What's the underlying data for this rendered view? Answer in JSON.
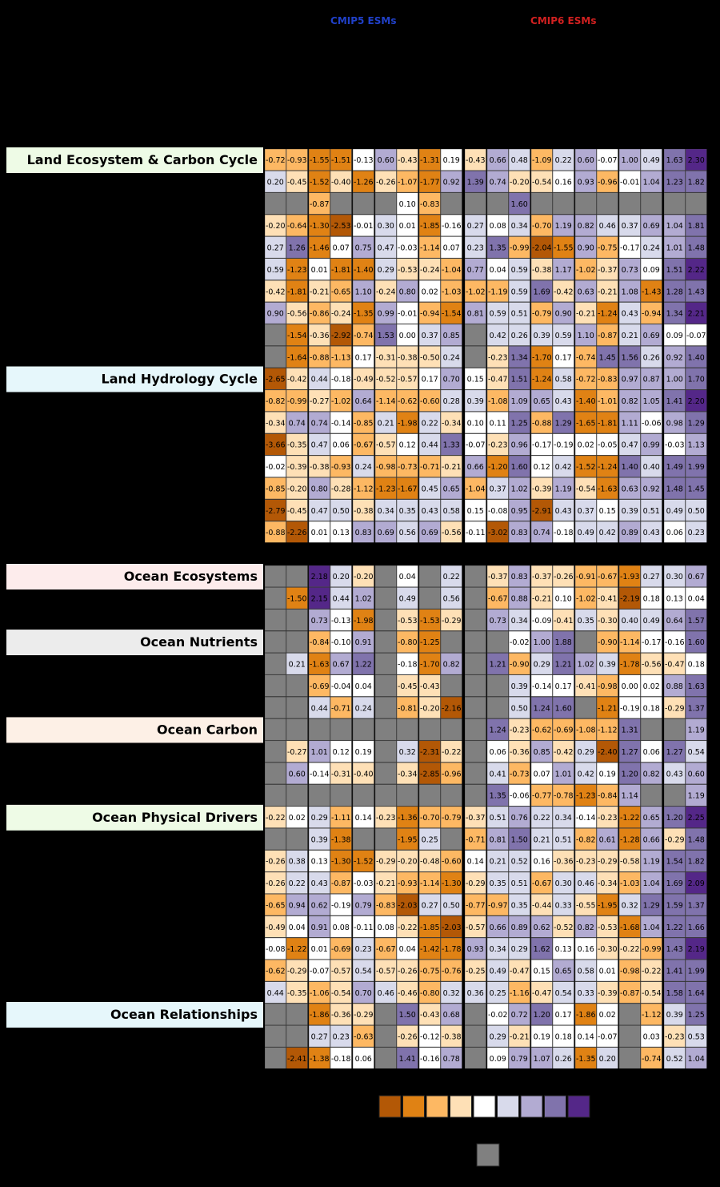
{
  "colors": {
    "cmip5": "#2040c8",
    "cmip6": "#d02020",
    "missing": "#808080",
    "background": "#000000",
    "scale": [
      "#b35806",
      "#e08214",
      "#fdb863",
      "#fee0b6",
      "#ffffff",
      "#d8daeb",
      "#b2abd2",
      "#8073ac",
      "#542788"
    ],
    "section_bg": {
      "Land Ecosystem & Carbon Cycle": "#eefbe6",
      "Land Hydrology Cycle": "#e6f7fb",
      "Ocean Ecosystems": "#fdecec",
      "Ocean Nutrients": "#ececec",
      "Ocean Carbon": "#fdf0e6",
      "Ocean Physical Drivers": "#eefbe6",
      "Ocean Relationships": "#e6f7fb"
    }
  },
  "chart_data": {
    "type": "heatmap",
    "title": "",
    "column_groups": [
      {
        "name": "CMIP5 ESMs",
        "count": 9
      },
      {
        "name": "CMIP6 ESMs",
        "count": 9
      },
      {
        "name": "",
        "count": 2
      }
    ],
    "columns": [
      "",
      "",
      "",
      "",
      "",
      "",
      "",
      "",
      "",
      "",
      "",
      "",
      "",
      "",
      "",
      "",
      "",
      "",
      "",
      ""
    ],
    "sections": [
      {
        "name": "Land Ecosystem & Carbon Cycle",
        "label_row": 0
      },
      {
        "name": "Land Hydrology Cycle",
        "label_row": 10
      },
      {
        "name": "Ocean Ecosystems",
        "label_row": 18
      },
      {
        "name": "Ocean Nutrients",
        "label_row": 21
      },
      {
        "name": "Ocean Carbon",
        "label_row": 25
      },
      {
        "name": "Ocean Physical Drivers",
        "label_row": 29
      },
      {
        "name": "Ocean Relationships",
        "label_row": 38
      }
    ],
    "scale_bins": 9,
    "rows": [
      [
        -0.72,
        -0.93,
        -1.55,
        -1.51,
        -0.13,
        0.6,
        -0.43,
        -1.31,
        0.19,
        -0.43,
        0.66,
        0.48,
        -1.09,
        0.22,
        0.6,
        -0.07,
        1.0,
        0.49,
        1.63,
        2.3
      ],
      [
        0.2,
        -0.45,
        -1.52,
        -0.4,
        -1.26,
        -0.26,
        -1.07,
        -1.77,
        0.92,
        1.39,
        0.74,
        -0.2,
        -0.54,
        0.16,
        0.93,
        -0.96,
        -0.01,
        1.04,
        1.23,
        1.82
      ],
      [
        null,
        null,
        -0.87,
        null,
        null,
        null,
        0.1,
        -0.83,
        null,
        null,
        null,
        1.6,
        null,
        null,
        null,
        null,
        null,
        null,
        null,
        null
      ],
      [
        -0.2,
        -0.64,
        -1.3,
        -2.53,
        -0.01,
        0.3,
        0.01,
        -1.85,
        -0.16,
        0.27,
        0.08,
        0.34,
        -0.7,
        1.19,
        0.82,
        0.46,
        0.37,
        0.69,
        1.04,
        1.81
      ],
      [
        0.27,
        1.26,
        -1.46,
        0.07,
        0.75,
        0.47,
        -0.03,
        -1.14,
        0.07,
        0.23,
        1.35,
        -0.99,
        -2.04,
        -1.55,
        0.9,
        -0.75,
        -0.17,
        0.24,
        1.01,
        1.48
      ],
      [
        0.59,
        -1.23,
        0.01,
        -1.81,
        -1.4,
        0.29,
        -0.53,
        -0.24,
        -1.04,
        0.77,
        0.04,
        0.59,
        -0.38,
        1.17,
        -1.02,
        -0.37,
        0.73,
        0.09,
        1.51,
        2.22
      ],
      [
        -0.42,
        -1.81,
        -0.21,
        -0.65,
        1.1,
        -0.24,
        0.8,
        0.02,
        -1.03,
        -1.02,
        -1.19,
        0.59,
        1.69,
        -0.42,
        0.63,
        -0.21,
        1.08,
        -1.43,
        1.28,
        1.43
      ],
      [
        0.9,
        -0.56,
        -0.86,
        -0.24,
        -1.35,
        0.99,
        -0.01,
        -0.94,
        -1.54,
        0.81,
        0.59,
        0.51,
        -0.79,
        0.9,
        -0.21,
        -1.24,
        0.43,
        -0.94,
        1.34,
        2.21
      ],
      [
        null,
        -1.54,
        -0.36,
        -2.92,
        -0.74,
        1.53,
        -0.0,
        0.37,
        0.85,
        null,
        0.42,
        0.26,
        0.39,
        0.59,
        1.1,
        -0.87,
        0.21,
        0.69,
        0.09,
        -0.07
      ],
      [
        null,
        -1.64,
        -0.88,
        -1.13,
        0.17,
        -0.31,
        -0.38,
        -0.5,
        0.24,
        null,
        -0.23,
        1.34,
        -1.7,
        0.17,
        -0.74,
        1.45,
        1.56,
        0.26,
        0.92,
        1.4
      ],
      [
        -2.65,
        -0.42,
        0.44,
        -0.18,
        -0.49,
        -0.52,
        -0.57,
        0.17,
        0.7,
        0.15,
        -0.47,
        1.51,
        -1.24,
        0.58,
        -0.72,
        -0.83,
        0.97,
        0.87,
        1.0,
        1.7
      ],
      [
        -0.82,
        -0.99,
        -0.27,
        -1.02,
        0.64,
        -1.14,
        -0.62,
        -0.6,
        0.28,
        0.39,
        -1.08,
        1.09,
        0.65,
        0.43,
        -1.4,
        -1.01,
        0.82,
        1.05,
        1.41,
        2.2
      ],
      [
        -0.34,
        0.74,
        0.74,
        -0.14,
        -0.85,
        0.21,
        -1.98,
        0.22,
        -0.34,
        0.1,
        0.11,
        1.25,
        -0.88,
        1.29,
        -1.65,
        -1.81,
        1.11,
        -0.06,
        0.98,
        1.29
      ],
      [
        -3.66,
        -0.35,
        0.47,
        0.06,
        -0.67,
        -0.57,
        0.12,
        0.44,
        1.33,
        -0.07,
        -0.23,
        0.96,
        -0.17,
        -0.19,
        0.02,
        -0.05,
        0.47,
        0.99,
        -0.03,
        1.13
      ],
      [
        -0.02,
        -0.39,
        -0.38,
        -0.93,
        0.24,
        -0.98,
        -0.73,
        -0.71,
        -0.21,
        0.66,
        -1.2,
        1.6,
        0.12,
        0.42,
        -1.52,
        -1.24,
        1.4,
        0.4,
        1.49,
        1.99
      ],
      [
        -0.85,
        -0.2,
        0.8,
        -0.28,
        -1.12,
        -1.23,
        -1.67,
        0.45,
        0.65,
        -1.04,
        0.37,
        1.02,
        -0.39,
        1.19,
        -0.54,
        -1.63,
        0.63,
        0.92,
        1.48,
        1.45
      ],
      [
        -2.79,
        -0.45,
        0.47,
        0.5,
        -0.38,
        0.34,
        0.35,
        0.43,
        0.58,
        0.15,
        -0.08,
        0.95,
        -2.91,
        0.43,
        0.37,
        0.15,
        0.39,
        0.51,
        0.49,
        0.5
      ],
      [
        -0.88,
        -2.26,
        0.01,
        0.13,
        0.83,
        0.69,
        0.56,
        0.69,
        -0.56,
        -0.11,
        -3.02,
        0.83,
        0.74,
        -0.18,
        0.49,
        0.42,
        0.89,
        0.43,
        0.06,
        0.23
      ],
      [
        null,
        null,
        2.18,
        0.2,
        -0.2,
        null,
        0.04,
        null,
        0.22,
        null,
        -0.37,
        0.83,
        -0.37,
        -0.26,
        -0.91,
        -0.67,
        -1.93,
        0.27,
        0.3,
        0.67
      ],
      [
        null,
        -1.5,
        2.15,
        0.44,
        1.02,
        null,
        0.49,
        null,
        0.56,
        null,
        -0.67,
        0.88,
        -0.21,
        0.1,
        -1.02,
        -0.41,
        -2.19,
        0.18,
        0.13,
        0.04
      ],
      [
        null,
        null,
        0.73,
        -0.13,
        -1.98,
        null,
        -0.53,
        -1.53,
        -0.29,
        null,
        0.73,
        0.34,
        -0.09,
        -0.41,
        0.35,
        -0.3,
        0.4,
        0.49,
        0.64,
        1.57
      ],
      [
        null,
        null,
        -0.84,
        -0.1,
        0.91,
        null,
        -0.8,
        -1.25,
        null,
        null,
        null,
        -0.02,
        1.0,
        1.88,
        null,
        -0.9,
        -1.14,
        -0.17,
        -0.16,
        1.6
      ],
      [
        null,
        0.21,
        -1.63,
        0.67,
        1.22,
        null,
        -0.18,
        -1.7,
        0.82,
        null,
        1.21,
        -0.9,
        0.29,
        1.21,
        1.02,
        0.39,
        -1.78,
        -0.56,
        -0.47,
        0.18
      ],
      [
        null,
        null,
        -0.69,
        -0.04,
        0.04,
        null,
        -0.45,
        -0.43,
        null,
        null,
        null,
        0.39,
        -0.14,
        0.17,
        -0.41,
        -0.98,
        0.0,
        0.02,
        0.88,
        1.63
      ],
      [
        null,
        null,
        0.44,
        -0.71,
        0.24,
        null,
        -0.81,
        -0.2,
        -2.16,
        null,
        null,
        0.5,
        1.24,
        1.6,
        null,
        -1.21,
        -0.19,
        0.18,
        -0.29,
        1.37
      ],
      [
        null,
        null,
        null,
        null,
        null,
        null,
        null,
        null,
        null,
        null,
        1.24,
        -0.23,
        -0.62,
        -0.69,
        -1.08,
        -1.12,
        1.31,
        null,
        null,
        1.19
      ],
      [
        null,
        -0.27,
        1.01,
        0.12,
        0.19,
        null,
        0.32,
        -2.31,
        -0.22,
        null,
        0.06,
        -0.36,
        0.85,
        -0.42,
        0.29,
        -2.4,
        1.27,
        0.06,
        1.27,
        0.54
      ],
      [
        null,
        0.6,
        -0.14,
        -0.31,
        -0.4,
        null,
        -0.34,
        -2.85,
        -0.96,
        null,
        0.41,
        -0.73,
        0.07,
        1.01,
        0.42,
        0.19,
        1.2,
        0.82,
        0.43,
        0.6
      ],
      [
        null,
        null,
        null,
        null,
        null,
        null,
        null,
        null,
        null,
        null,
        1.35,
        -0.06,
        -0.77,
        -0.78,
        -1.23,
        -0.84,
        1.14,
        null,
        null,
        1.19
      ],
      [
        -0.22,
        0.02,
        0.29,
        -1.11,
        0.14,
        -0.23,
        -1.36,
        -0.7,
        -0.79,
        -0.37,
        0.51,
        0.76,
        0.22,
        0.34,
        -0.14,
        -0.23,
        -1.22,
        0.65,
        1.2,
        2.25
      ],
      [
        null,
        null,
        0.39,
        -1.38,
        null,
        null,
        -1.95,
        0.25,
        null,
        -0.71,
        0.81,
        1.5,
        0.21,
        0.51,
        -0.82,
        0.61,
        -1.28,
        0.66,
        -0.29,
        1.48
      ],
      [
        -0.26,
        0.38,
        0.13,
        -1.3,
        -1.52,
        -0.29,
        -0.2,
        -0.48,
        -0.6,
        0.14,
        0.21,
        0.52,
        0.16,
        -0.36,
        -0.23,
        -0.29,
        -0.58,
        1.19,
        1.54,
        1.82
      ],
      [
        -0.26,
        0.22,
        0.43,
        -0.87,
        -0.03,
        -0.21,
        -0.93,
        -1.14,
        -1.3,
        -0.29,
        0.35,
        0.51,
        -0.67,
        0.3,
        0.46,
        -0.34,
        -1.03,
        1.04,
        1.69,
        2.09
      ],
      [
        -0.65,
        0.94,
        0.62,
        -0.19,
        0.79,
        -0.83,
        -2.03,
        0.27,
        0.5,
        -0.77,
        -0.97,
        0.35,
        -0.44,
        0.33,
        -0.55,
        -1.95,
        0.32,
        1.29,
        1.59,
        1.37
      ],
      [
        -0.49,
        0.04,
        0.91,
        0.08,
        -0.11,
        0.08,
        -0.22,
        -1.85,
        -2.03,
        -0.57,
        0.66,
        0.89,
        0.62,
        -0.52,
        0.82,
        -0.53,
        -1.68,
        1.04,
        1.22,
        1.66
      ],
      [
        -0.08,
        -1.22,
        0.01,
        -0.69,
        0.23,
        -0.67,
        0.04,
        -1.42,
        -1.78,
        0.93,
        0.34,
        0.29,
        1.62,
        0.13,
        0.16,
        -0.3,
        -0.22,
        -0.99,
        1.43,
        2.19
      ],
      [
        -0.62,
        -0.29,
        -0.07,
        -0.57,
        0.54,
        -0.57,
        -0.26,
        -0.75,
        -0.76,
        -0.25,
        0.49,
        -0.47,
        0.15,
        0.65,
        0.58,
        0.01,
        -0.98,
        -0.22,
        1.41,
        1.99
      ],
      [
        0.44,
        -0.35,
        -1.06,
        -0.54,
        0.7,
        0.46,
        -0.46,
        -0.8,
        0.32,
        0.36,
        0.25,
        -1.16,
        -0.47,
        0.54,
        0.33,
        -0.39,
        -0.87,
        -0.54,
        1.58,
        1.64
      ],
      [
        null,
        null,
        -1.86,
        -0.36,
        -0.29,
        null,
        1.5,
        -0.43,
        0.68,
        null,
        -0.02,
        0.72,
        1.2,
        0.17,
        -1.86,
        0.02,
        null,
        -1.12,
        0.39,
        1.25
      ],
      [
        null,
        null,
        0.27,
        0.23,
        -0.63,
        null,
        -0.26,
        -0.12,
        -0.38,
        null,
        0.29,
        -0.21,
        0.19,
        0.18,
        0.14,
        -0.07,
        null,
        0.03,
        -0.23,
        0.53
      ],
      [
        null,
        -2.41,
        -1.38,
        -0.18,
        0.06,
        null,
        1.41,
        -0.16,
        0.78,
        null,
        0.09,
        0.79,
        1.07,
        0.26,
        -1.35,
        0.2,
        null,
        -0.74,
        0.52,
        1.04
      ]
    ]
  }
}
